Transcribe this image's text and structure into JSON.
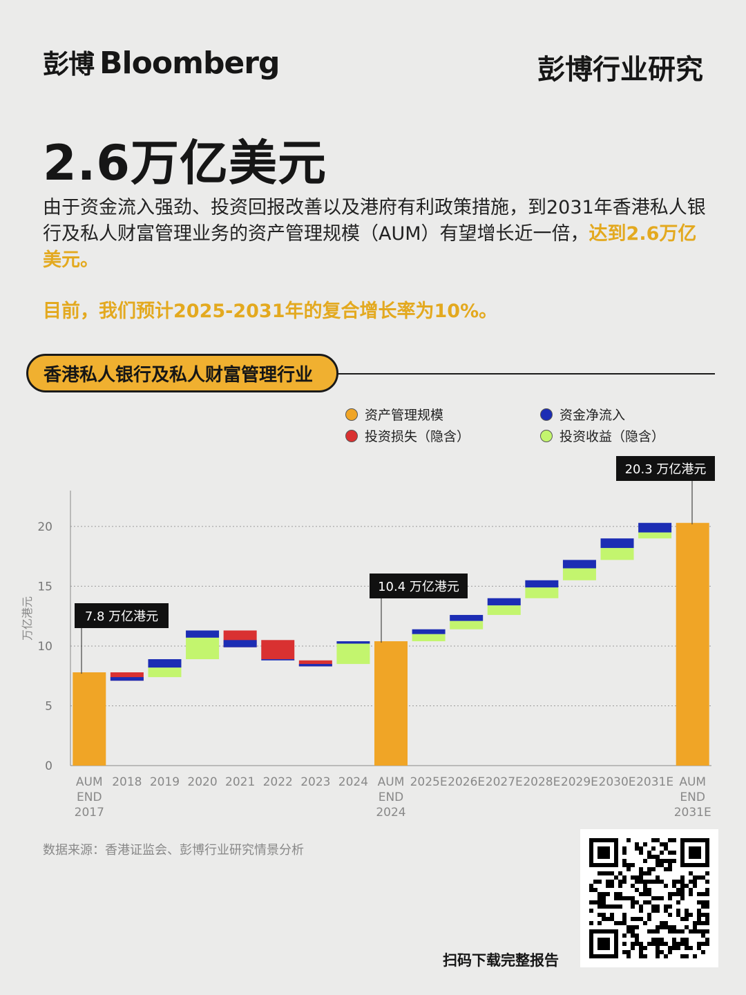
{
  "header": {
    "logo_cn": "彭博",
    "logo_en": "Bloomberg",
    "section_title": "彭博行业研究"
  },
  "headline": "2.6万亿美元",
  "body": {
    "text_main": "由于资金流入强劲、投资回报改善以及港府有利政策措施，到2031年香港私人银行及私人财富管理业务的资产管理规模（AUM）有望增长近一倍，",
    "text_highlight": "达到2.6万亿美元。",
    "cagr_note": "目前，我们预计2025-2031年的复合增长率为10%。"
  },
  "chart_section_title": "香港私人银行及私人财富管理行业",
  "legend": [
    {
      "label": "资产管理规模",
      "color": "#f0a526"
    },
    {
      "label": "资金净流入",
      "color": "#1c2db4"
    },
    {
      "label": "投资损失（隐含）",
      "color": "#d93131"
    },
    {
      "label": "投资收益（隐含）",
      "color": "#c3f56e"
    }
  ],
  "chart_data": {
    "type": "waterfall",
    "ylabel": "万亿港元",
    "ylim": [
      0,
      23
    ],
    "yticks": [
      0,
      5,
      10,
      15,
      20
    ],
    "grid": "dashed",
    "categories": [
      "AUM END 2017",
      "2018",
      "2019",
      "2020",
      "2021",
      "2022",
      "2023",
      "2024",
      "AUM END 2024",
      "2025E",
      "2026E",
      "2027E",
      "2028E",
      "2029E",
      "2030E",
      "2031E",
      "AUM END 2031E"
    ],
    "aum_totals": [
      {
        "category": "AUM END 2017",
        "value": 7.8,
        "label": "7.8 万亿港元"
      },
      {
        "category": "AUM END 2024",
        "value": 10.4,
        "label": "10.4 万亿港元"
      },
      {
        "category": "AUM END 2031E",
        "value": 20.3,
        "label": "20.3 万亿港元"
      }
    ],
    "steps": [
      {
        "category": "2018",
        "start": 7.8,
        "investment": -0.7,
        "net_inflow": 0.3
      },
      {
        "category": "2019",
        "start": 7.4,
        "investment": 0.8,
        "net_inflow": 0.7
      },
      {
        "category": "2020",
        "start": 8.9,
        "investment": 1.8,
        "net_inflow": 0.6
      },
      {
        "category": "2021",
        "start": 11.3,
        "investment": -1.4,
        "net_inflow": 0.6
      },
      {
        "category": "2022",
        "start": 10.5,
        "investment": -1.6,
        "net_inflow": -0.1
      },
      {
        "category": "2023",
        "start": 8.8,
        "investment": -0.5,
        "net_inflow": 0.2
      },
      {
        "category": "2024",
        "start": 8.5,
        "investment": 1.7,
        "net_inflow": 0.2
      },
      {
        "category": "2025E",
        "start": 10.4,
        "investment": 0.6,
        "net_inflow": 0.4
      },
      {
        "category": "2026E",
        "start": 11.4,
        "investment": 0.7,
        "net_inflow": 0.5
      },
      {
        "category": "2027E",
        "start": 12.6,
        "investment": 0.8,
        "net_inflow": 0.6
      },
      {
        "category": "2028E",
        "start": 14.0,
        "investment": 0.9,
        "net_inflow": 0.6
      },
      {
        "category": "2029E",
        "start": 15.5,
        "investment": 1.0,
        "net_inflow": 0.7
      },
      {
        "category": "2030E",
        "start": 17.2,
        "investment": 1.0,
        "net_inflow": 0.8
      },
      {
        "category": "2031E",
        "start": 19.0,
        "investment": 0.5,
        "net_inflow": 0.8
      }
    ]
  },
  "footer": {
    "source": "数据来源：香港证监会、彭博行业研究情景分析",
    "qr_caption": "扫码下载完整报告"
  }
}
